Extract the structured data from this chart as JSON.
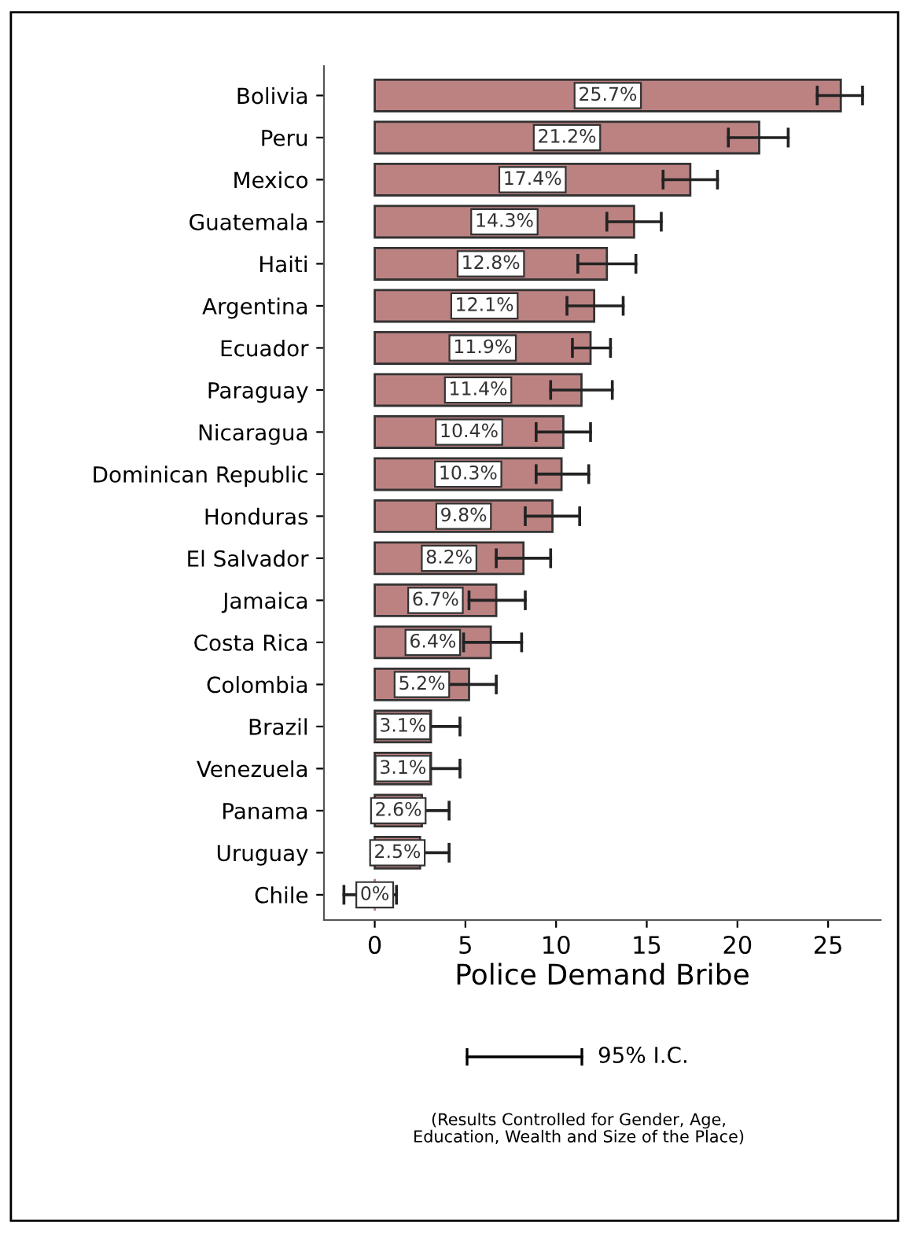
{
  "chart_data": {
    "type": "bar",
    "orientation": "horizontal",
    "xlabel": "Police Demand Bribe",
    "categories": [
      "Bolivia",
      "Peru",
      "Mexico",
      "Guatemala",
      "Haiti",
      "Argentina",
      "Ecuador",
      "Paraguay",
      "Nicaragua",
      "Dominican Republic",
      "Honduras",
      "El Salvador",
      "Jamaica",
      "Costa Rica",
      "Colombia",
      "Brazil",
      "Venezuela",
      "Panama",
      "Uruguay",
      "Chile"
    ],
    "values": [
      25.7,
      21.2,
      17.4,
      14.3,
      12.8,
      12.1,
      11.9,
      11.4,
      10.4,
      10.3,
      9.8,
      8.2,
      6.7,
      6.4,
      5.2,
      3.1,
      3.1,
      2.6,
      2.5,
      0
    ],
    "value_labels": [
      "25.7%",
      "21.2%",
      "17.4%",
      "14.3%",
      "12.8%",
      "12.1%",
      "11.9%",
      "11.4%",
      "10.4%",
      "10.3%",
      "9.8%",
      "8.2%",
      "6.7%",
      "6.4%",
      "5.2%",
      "3.1%",
      "3.1%",
      "2.6%",
      "2.5%",
      "0%"
    ],
    "errors": [
      [
        24.4,
        26.9
      ],
      [
        19.5,
        22.8
      ],
      [
        15.9,
        18.9
      ],
      [
        12.8,
        15.8
      ],
      [
        11.2,
        14.4
      ],
      [
        10.6,
        13.7
      ],
      [
        10.9,
        13.0
      ],
      [
        9.7,
        13.1
      ],
      [
        8.9,
        11.9
      ],
      [
        8.9,
        11.8
      ],
      [
        8.3,
        11.3
      ],
      [
        6.7,
        9.7
      ],
      [
        5.2,
        8.3
      ],
      [
        4.9,
        8.1
      ],
      [
        3.7,
        6.7
      ],
      [
        1.5,
        4.7
      ],
      [
        1.5,
        4.7
      ],
      [
        1.1,
        4.1
      ],
      [
        0.9,
        4.1
      ],
      [
        -1.7,
        1.2
      ]
    ],
    "color": "#bc8282",
    "xlim": [
      -2.8,
      27.9
    ],
    "xticks": [
      0,
      5,
      10,
      15,
      20,
      25
    ],
    "grid": false,
    "annotations": [
      "95% I.C.",
      "(Results Controlled for Gender, Age,\nEducation, Wealth and Size of the Place)"
    ]
  }
}
